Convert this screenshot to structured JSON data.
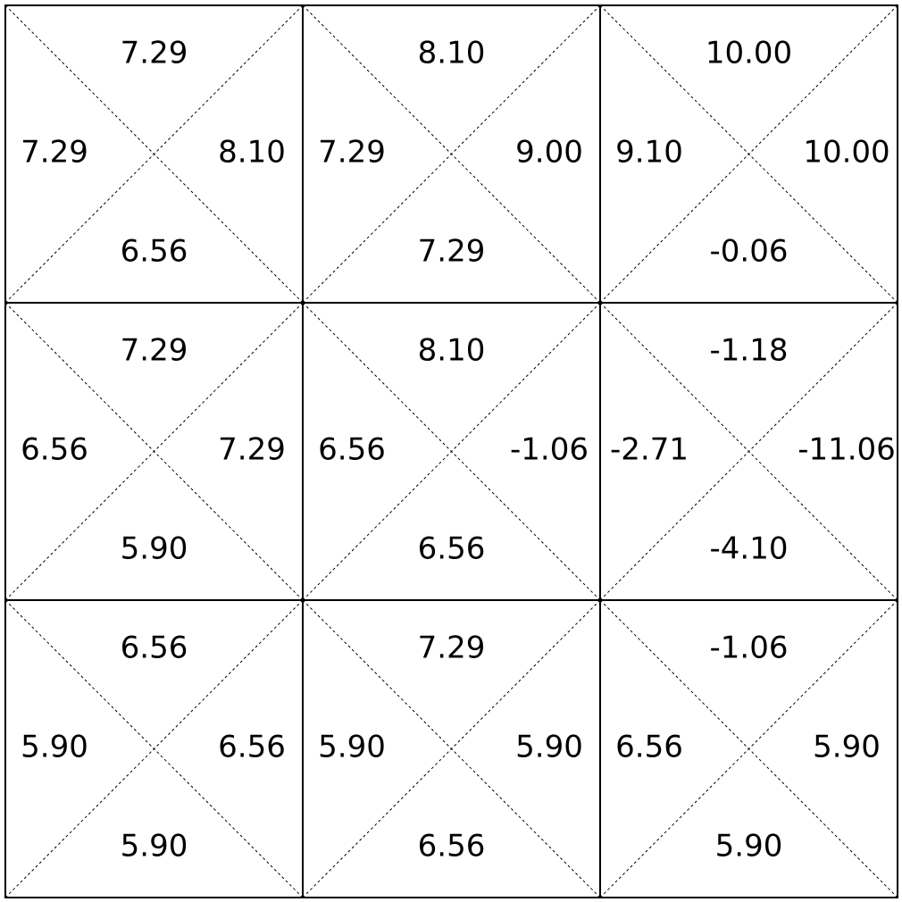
{
  "grid": {
    "rows": [
      [
        {
          "up": "7.29",
          "left": "7.29",
          "right": "8.10",
          "down": "6.56"
        },
        {
          "up": "8.10",
          "left": "7.29",
          "right": "9.00",
          "down": "7.29"
        },
        {
          "up": "10.00",
          "left": "9.10",
          "right": "10.00",
          "down": "-0.06"
        }
      ],
      [
        {
          "up": "7.29",
          "left": "6.56",
          "right": "7.29",
          "down": "5.90"
        },
        {
          "up": "8.10",
          "left": "6.56",
          "right": "-1.06",
          "down": "6.56"
        },
        {
          "up": "-1.18",
          "left": "-2.71",
          "right": "-11.06",
          "down": "-4.10"
        }
      ],
      [
        {
          "up": "6.56",
          "left": "5.90",
          "right": "6.56",
          "down": "5.90"
        },
        {
          "up": "7.29",
          "left": "5.90",
          "right": "5.90",
          "down": "6.56"
        },
        {
          "up": "-1.06",
          "left": "6.56",
          "right": "5.90",
          "down": "5.90"
        }
      ]
    ]
  }
}
